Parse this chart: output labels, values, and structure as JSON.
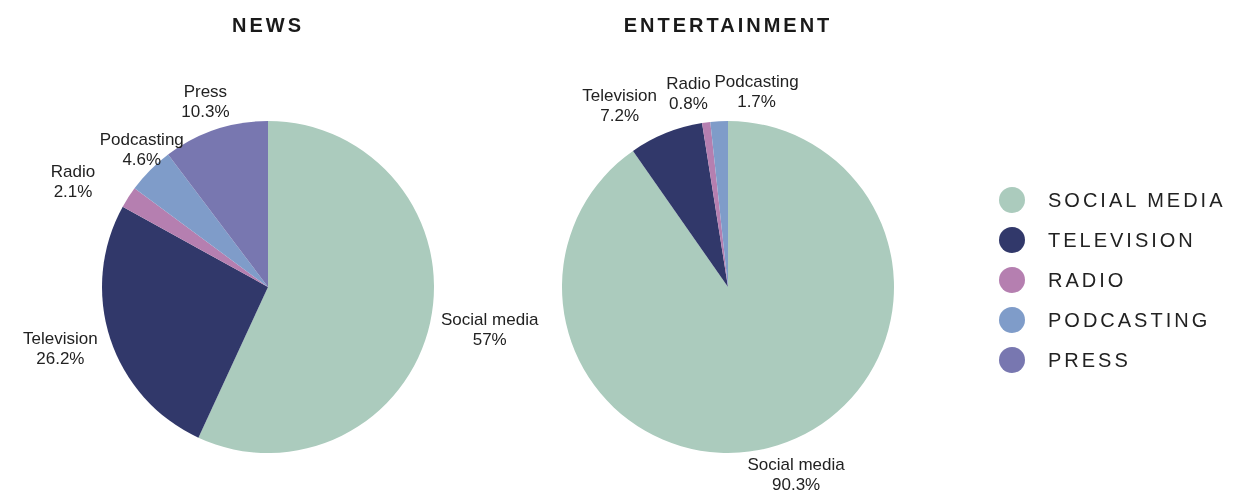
{
  "chart_data": [
    {
      "type": "pie",
      "title": "NEWS",
      "categories": [
        "Social media",
        "Television",
        "Radio",
        "Podcasting",
        "Press"
      ],
      "values": [
        57,
        26.2,
        2.1,
        4.6,
        10.3
      ],
      "value_labels": [
        "57%",
        "26.2%",
        "2.1%",
        "4.6%",
        "10.3%"
      ],
      "colors": [
        "#abcbbd",
        "#31386a",
        "#b57fb0",
        "#7f9cc9",
        "#7877b0"
      ]
    },
    {
      "type": "pie",
      "title": "ENTERTAINMENT",
      "categories": [
        "Social media",
        "Television",
        "Radio",
        "Podcasting"
      ],
      "values": [
        90.3,
        7.2,
        0.8,
        1.7
      ],
      "value_labels": [
        "90.3%",
        "7.2%",
        "0.8%",
        "1.7%"
      ],
      "colors": [
        "#abcbbd",
        "#31386a",
        "#b57fb0",
        "#7f9cc9"
      ]
    },
    {
      "type": "other",
      "categories": [
        "SOCIAL MEDIA",
        "TELEVISION",
        "RADIO",
        "PODCASTING",
        "PRESS"
      ],
      "colors": [
        "#abcbbd",
        "#31386a",
        "#b57fb0",
        "#7f9cc9",
        "#7877b0"
      ]
    }
  ]
}
